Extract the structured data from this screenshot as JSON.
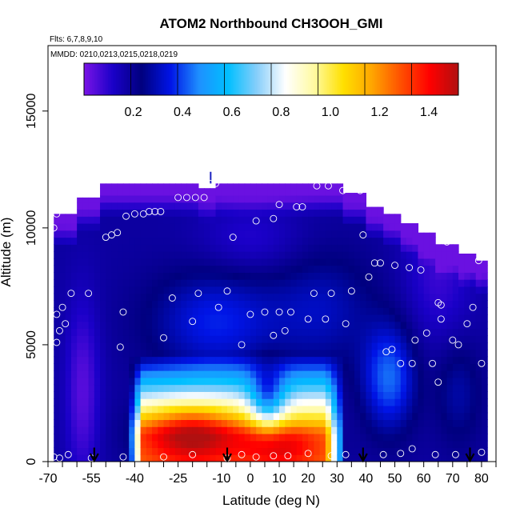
{
  "chart_data": {
    "type": "heatmap",
    "title": "ATOM2 Northbound CH3OOH_GMI",
    "subtitle_flights": "Flts: 6,7,8,9,10",
    "subtitle_dates": "MMDD: 0210,0213,0215,0218,0219",
    "xlabel": "Latitude (deg N)",
    "ylabel": "Altitude (m)",
    "xlim": [
      -70,
      85
    ],
    "ylim": [
      0,
      17800
    ],
    "xticks": [
      -70,
      -55,
      -40,
      -25,
      -10,
      0,
      10,
      20,
      30,
      40,
      50,
      60,
      70,
      80
    ],
    "xtick_labels": [
      "-70",
      "-55",
      "-40",
      "-25",
      "-10",
      "0",
      "10",
      "20",
      "30",
      "40",
      "50",
      "60",
      "70",
      "80"
    ],
    "yticks": [
      0,
      5000,
      10000,
      15000
    ],
    "ytick_labels": [
      "0",
      "5000",
      "10000",
      "15000"
    ],
    "colorbar": {
      "range": [
        0,
        1.52
      ],
      "ticks": [
        0.2,
        0.4,
        0.6,
        0.8,
        1.0,
        1.2,
        1.4
      ],
      "tick_labels": [
        "0.2",
        "0.4",
        "0.6",
        "0.8",
        "1.0",
        "1.2",
        "1.4"
      ]
    },
    "colors": [
      "#7a14e6",
      "#1a00c8",
      "#00007e",
      "#0014e6",
      "#1e90ff",
      "#00bfff",
      "#87cefa",
      "#ffffff",
      "#fffaa0",
      "#ffe000",
      "#ffa500",
      "#ff5000",
      "#ff0000",
      "#b01010"
    ],
    "sample_points": [
      [
        -68,
        200
      ],
      [
        -66,
        150
      ],
      [
        -63,
        300
      ],
      [
        -67,
        5100
      ],
      [
        -66,
        5600
      ],
      [
        -64,
        5900
      ],
      [
        -67,
        6300
      ],
      [
        -65,
        6600
      ],
      [
        -62,
        7200
      ],
      [
        -56,
        7200
      ],
      [
        -68,
        10000
      ],
      [
        -67,
        10600
      ],
      [
        -64,
        11200
      ],
      [
        -60,
        11800
      ],
      [
        -59,
        11900
      ],
      [
        -50,
        9600
      ],
      [
        -48,
        9700
      ],
      [
        -46,
        9800
      ],
      [
        -43,
        10500
      ],
      [
        -40,
        10600
      ],
      [
        -37,
        10600
      ],
      [
        -35,
        10700
      ],
      [
        -33,
        10700
      ],
      [
        -31,
        10700
      ],
      [
        -25,
        11300
      ],
      [
        -22,
        11300
      ],
      [
        -19,
        11300
      ],
      [
        -16,
        11300
      ],
      [
        -14,
        11900
      ],
      [
        -12,
        11900
      ],
      [
        -44,
        6400
      ],
      [
        -45,
        4900
      ],
      [
        -30,
        5300
      ],
      [
        -27,
        7000
      ],
      [
        -20,
        6000
      ],
      [
        -18,
        7200
      ],
      [
        -11,
        6600
      ],
      [
        -8,
        7300
      ],
      [
        -3,
        5000
      ],
      [
        -6,
        9600
      ],
      [
        0,
        6300
      ],
      [
        2,
        10300
      ],
      [
        5,
        6400
      ],
      [
        8,
        10400
      ],
      [
        8,
        5400
      ],
      [
        10,
        6400
      ],
      [
        10,
        11000
      ],
      [
        12,
        5600
      ],
      [
        14,
        6400
      ],
      [
        16,
        10900
      ],
      [
        18,
        10900
      ],
      [
        20,
        6100
      ],
      [
        22,
        7200
      ],
      [
        26,
        6100
      ],
      [
        28,
        7200
      ],
      [
        33,
        5900
      ],
      [
        35,
        7300
      ],
      [
        38,
        11600
      ],
      [
        39,
        9700
      ],
      [
        41,
        7900
      ],
      [
        43,
        8500
      ],
      [
        45,
        8500
      ],
      [
        47,
        4700
      ],
      [
        49,
        4800
      ],
      [
        50,
        8400
      ],
      [
        52,
        4200
      ],
      [
        55,
        8300
      ],
      [
        56,
        4200
      ],
      [
        57,
        5200
      ],
      [
        59,
        8200
      ],
      [
        61,
        5500
      ],
      [
        63,
        4200
      ],
      [
        65,
        6800
      ],
      [
        66,
        6700
      ],
      [
        66,
        6100
      ],
      [
        65,
        3400
      ],
      [
        68,
        9400
      ],
      [
        70,
        5200
      ],
      [
        72,
        5000
      ],
      [
        74,
        9400
      ],
      [
        75,
        5900
      ],
      [
        77,
        6600
      ],
      [
        79,
        8600
      ],
      [
        80,
        4200
      ],
      [
        80,
        400
      ],
      [
        -55,
        150
      ],
      [
        -44,
        200
      ],
      [
        -30,
        200
      ],
      [
        -20,
        300
      ],
      [
        -8,
        150
      ],
      [
        -3,
        300
      ],
      [
        2,
        200
      ],
      [
        8,
        250
      ],
      [
        13,
        250
      ],
      [
        20,
        350
      ],
      [
        28,
        250
      ],
      [
        33,
        300
      ],
      [
        46,
        300
      ],
      [
        52,
        350
      ],
      [
        56,
        550
      ],
      [
        64,
        300
      ],
      [
        71,
        300
      ],
      [
        23,
        11800
      ],
      [
        27,
        11800
      ],
      [
        32,
        11600
      ]
    ],
    "arrows_latitude": [
      -54,
      -8,
      39,
      76
    ]
  }
}
